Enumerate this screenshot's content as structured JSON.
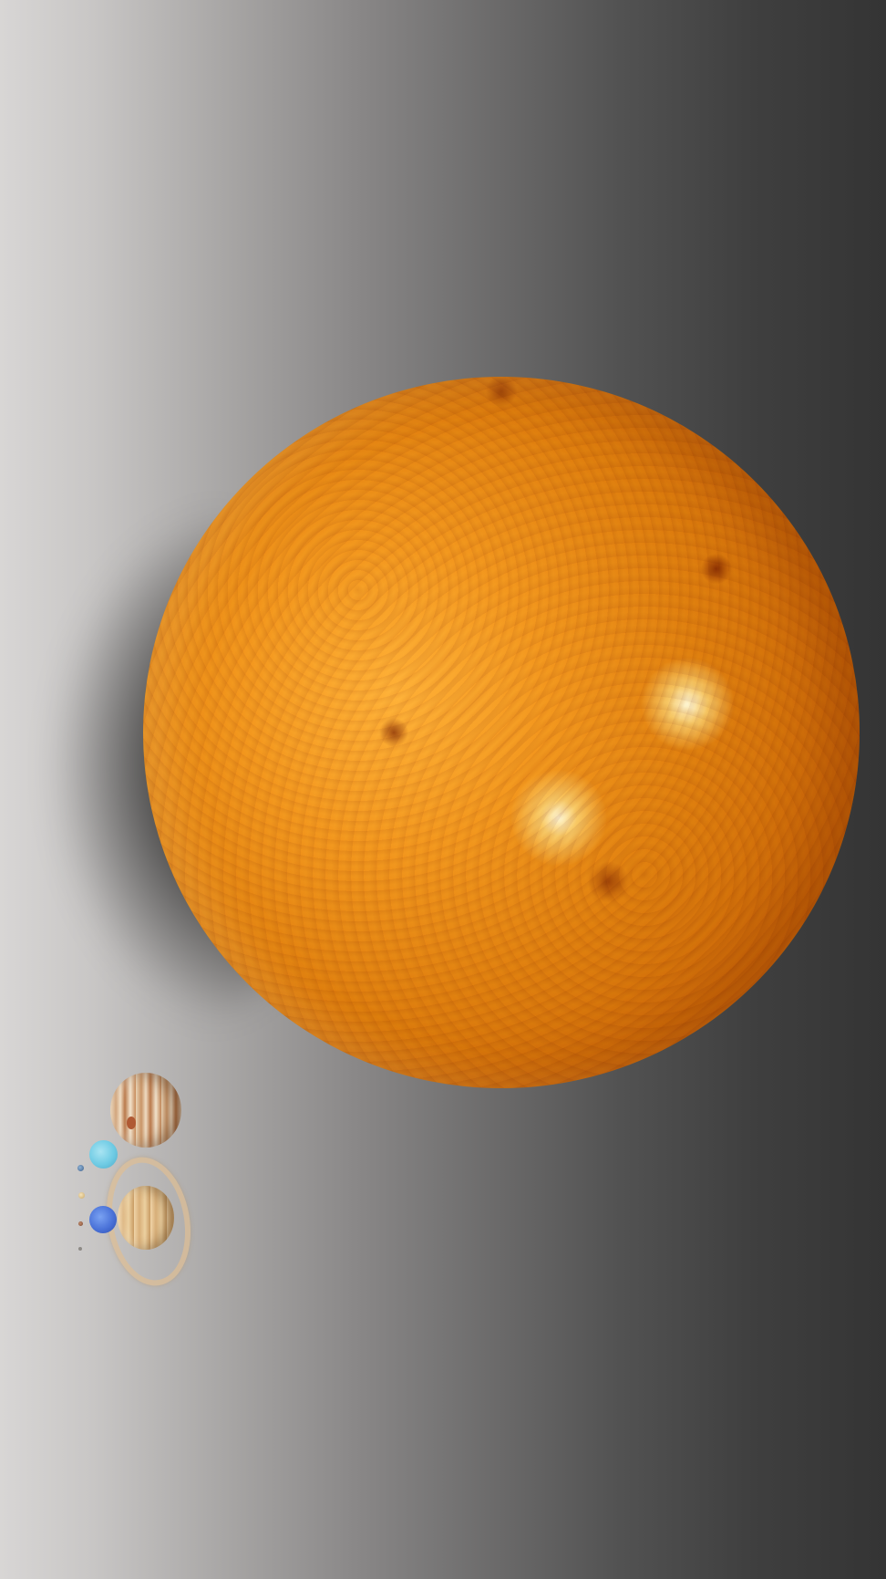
{
  "scene": {
    "description_label": "",
    "background_left_color": "#d8d6d5",
    "background_right_color": "#343434",
    "sun_color": "#f39a1f",
    "bodies": [
      {
        "name": "sun"
      },
      {
        "name": "jupiter"
      },
      {
        "name": "saturn"
      },
      {
        "name": "uranus"
      },
      {
        "name": "neptune"
      },
      {
        "name": "earth"
      },
      {
        "name": "venus"
      },
      {
        "name": "mars"
      },
      {
        "name": "mercury"
      }
    ]
  }
}
